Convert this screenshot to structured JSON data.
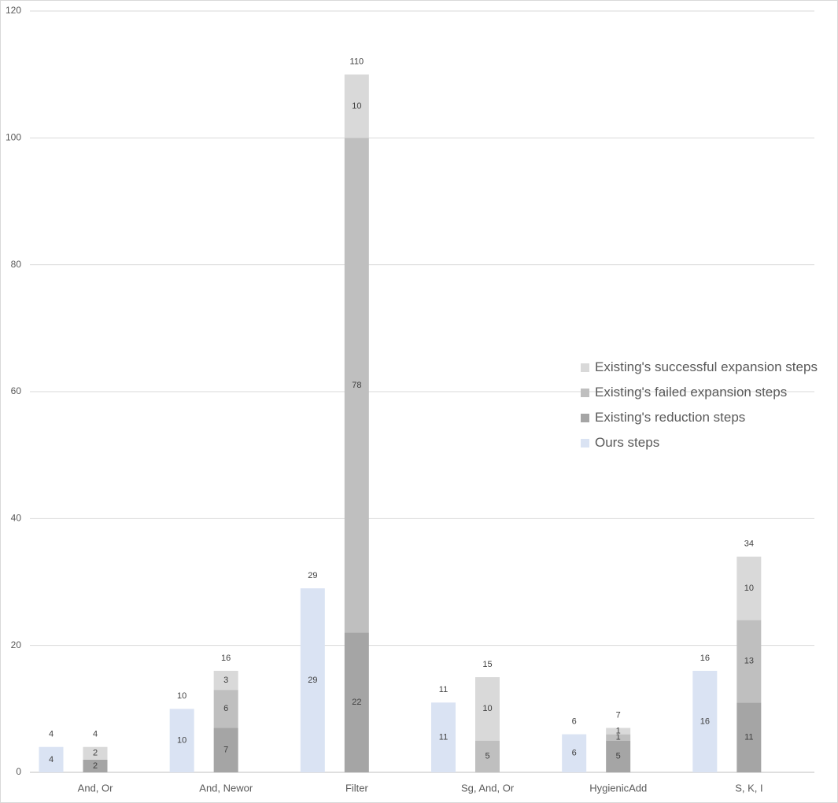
{
  "chart_data": {
    "type": "bar",
    "stacked": true,
    "categories": [
      "And, Or",
      "And, Newor",
      "Filter",
      "Sg, And, Or",
      "HygienicAdd",
      "S, K, I"
    ],
    "ylim": [
      0,
      120
    ],
    "yticks": [
      0,
      20,
      40,
      60,
      80,
      100,
      120
    ],
    "grid": true,
    "legend_position": "right",
    "ours": {
      "name": "Ours steps",
      "color": "#dae3f3",
      "values": [
        4,
        10,
        29,
        11,
        6,
        16
      ],
      "totals": [
        4,
        10,
        29,
        11,
        6,
        16
      ]
    },
    "existing": {
      "series": [
        {
          "name": "Existing's reduction steps",
          "color": "#a5a5a5",
          "values": [
            2,
            7,
            22,
            0,
            5,
            11
          ],
          "labels": [
            "2",
            "7",
            "22",
            "",
            "5",
            "11"
          ]
        },
        {
          "name": "Existing's failed expansion steps",
          "color": "#bfbfbf",
          "values": [
            0,
            6,
            78,
            5,
            1,
            13
          ],
          "labels": [
            "",
            "6",
            "78",
            "5",
            "1",
            "13"
          ]
        },
        {
          "name": "Existing's successful expansion steps",
          "color": "#d9d9d9",
          "values": [
            2,
            3,
            10,
            10,
            1,
            10
          ],
          "labels": [
            "2",
            "3",
            "10",
            "10",
            "1",
            "10"
          ]
        }
      ],
      "totals": [
        4,
        16,
        110,
        15,
        7,
        34
      ]
    },
    "legend_order": [
      "Existing's successful expansion steps",
      "Existing's failed expansion steps",
      "Existing's reduction steps",
      "Ours steps"
    ]
  }
}
